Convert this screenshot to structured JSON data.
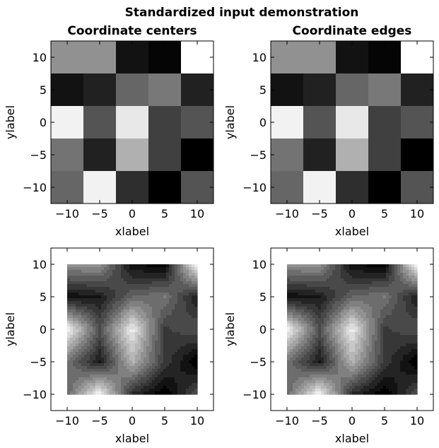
{
  "figure": {
    "suptitle": "Standardized input demonstration"
  },
  "chart_data": [
    {
      "type": "heatmap",
      "title": "Coordinate centers",
      "xlabel": "xlabel",
      "ylabel": "ylabel",
      "xlim": [
        -12.5,
        12.5
      ],
      "ylim": [
        -12.5,
        12.5
      ],
      "xticks": [
        -10,
        -5,
        0,
        5,
        10
      ],
      "yticks": [
        -10,
        -5,
        0,
        5,
        10
      ],
      "x": [
        -10,
        -5,
        0,
        5,
        10
      ],
      "y": [
        10,
        5,
        0,
        -5,
        -10
      ],
      "colormap": "gray",
      "values": [
        [
          0.57,
          0.57,
          0.07,
          0.02,
          1.0
        ],
        [
          0.07,
          0.13,
          0.4,
          0.47,
          0.13
        ],
        [
          0.95,
          0.33,
          0.91,
          0.25,
          0.33
        ],
        [
          0.45,
          0.13,
          0.69,
          0.25,
          0.0
        ],
        [
          0.4,
          0.95,
          0.18,
          0.0,
          0.33
        ]
      ]
    },
    {
      "type": "heatmap",
      "title": "Coordinate edges",
      "xlabel": "xlabel",
      "ylabel": "ylabel",
      "xlim": [
        -12.5,
        12.5
      ],
      "ylim": [
        -12.5,
        12.5
      ],
      "xticks": [
        -10,
        -5,
        0,
        5,
        10
      ],
      "yticks": [
        -10,
        -5,
        0,
        5,
        10
      ],
      "x_edges": [
        -12.5,
        -7.5,
        -2.5,
        2.5,
        7.5,
        12.5
      ],
      "y_edges": [
        12.5,
        7.5,
        2.5,
        -2.5,
        -7.5,
        -12.5
      ],
      "colormap": "gray",
      "values": [
        [
          0.57,
          0.57,
          0.07,
          0.02,
          1.0
        ],
        [
          0.07,
          0.13,
          0.4,
          0.47,
          0.13
        ],
        [
          0.95,
          0.33,
          0.91,
          0.25,
          0.33
        ],
        [
          0.45,
          0.13,
          0.69,
          0.25,
          0.0
        ],
        [
          0.4,
          0.95,
          0.18,
          0.0,
          0.33
        ]
      ]
    },
    {
      "type": "contour",
      "title": "",
      "xlabel": "xlabel",
      "ylabel": "ylabel",
      "xlim": [
        -12.5,
        12.5
      ],
      "ylim": [
        -12.5,
        12.5
      ],
      "xticks": [
        -10,
        -5,
        0,
        5,
        10
      ],
      "yticks": [
        -10,
        -5,
        0,
        5,
        10
      ],
      "x": [
        -10,
        -5,
        0,
        5,
        10
      ],
      "y": [
        10,
        5,
        0,
        -5,
        -10
      ],
      "colormap": "gray",
      "levels": 15,
      "values": [
        [
          0.57,
          0.57,
          0.07,
          0.02,
          1.0
        ],
        [
          0.07,
          0.13,
          0.4,
          0.47,
          0.13
        ],
        [
          0.95,
          0.33,
          0.91,
          0.25,
          0.33
        ],
        [
          0.45,
          0.13,
          0.69,
          0.25,
          0.0
        ],
        [
          0.4,
          0.95,
          0.18,
          0.0,
          0.33
        ]
      ]
    },
    {
      "type": "contour",
      "title": "",
      "xlabel": "xlabel",
      "ylabel": "ylabel",
      "xlim": [
        -12.5,
        12.5
      ],
      "ylim": [
        -12.5,
        12.5
      ],
      "xticks": [
        -10,
        -5,
        0,
        5,
        10
      ],
      "yticks": [
        -10,
        -5,
        0,
        5,
        10
      ],
      "x": [
        -10,
        -5,
        0,
        5,
        10
      ],
      "y": [
        10,
        5,
        0,
        -5,
        -10
      ],
      "colormap": "gray",
      "levels": 15,
      "values": [
        [
          0.57,
          0.57,
          0.07,
          0.02,
          1.0
        ],
        [
          0.07,
          0.13,
          0.4,
          0.47,
          0.13
        ],
        [
          0.95,
          0.33,
          0.91,
          0.25,
          0.33
        ],
        [
          0.45,
          0.13,
          0.69,
          0.25,
          0.0
        ],
        [
          0.4,
          0.95,
          0.18,
          0.0,
          0.33
        ]
      ]
    }
  ]
}
